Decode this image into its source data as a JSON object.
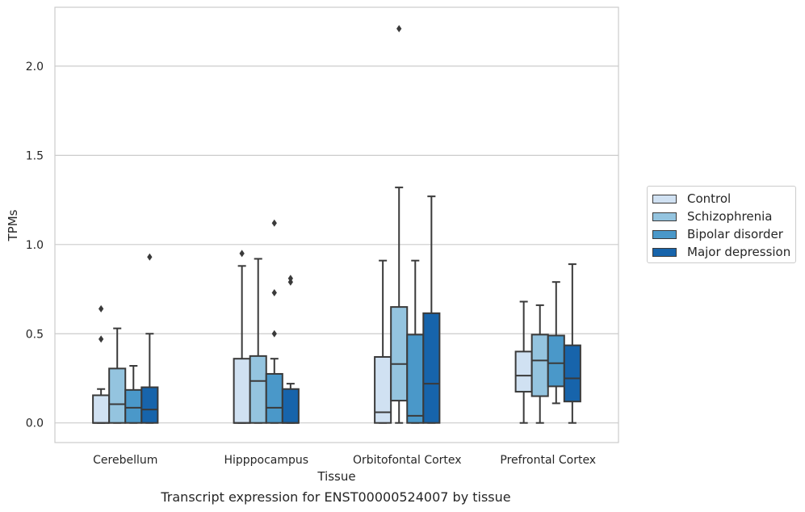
{
  "caption": "Transcript expression for ENST00000524007 by tissue",
  "chart_data": {
    "type": "box",
    "xlabel": "Tissue",
    "ylabel": "TPMs",
    "ylim": [
      -0.11,
      2.33
    ],
    "yticks": [
      0.0,
      0.5,
      1.0,
      1.5,
      2.0
    ],
    "ytick_labels": [
      "0.0",
      "0.5",
      "1.0",
      "1.5",
      "2.0"
    ],
    "grid": true,
    "legend_position": "outside-right",
    "categories": [
      "Cerebellum",
      "Hipppocampus",
      "Orbitofontal Cortex",
      "Prefrontal Cortex"
    ],
    "series": [
      {
        "name": "Control",
        "color": "#d0e1f2",
        "boxes": [
          {
            "whislo": 0.0,
            "q1": 0.0,
            "med": 0.0,
            "q3": 0.155,
            "whishi": 0.19,
            "fliers": [
              0.47,
              0.64
            ]
          },
          {
            "whislo": 0.0,
            "q1": 0.0,
            "med": 0.0,
            "q3": 0.36,
            "whishi": 0.88,
            "fliers": [
              0.95
            ]
          },
          {
            "whislo": 0.0,
            "q1": 0.0,
            "med": 0.06,
            "q3": 0.37,
            "whishi": 0.91,
            "fliers": []
          },
          {
            "whislo": 0.0,
            "q1": 0.175,
            "med": 0.265,
            "q3": 0.4,
            "whishi": 0.68,
            "fliers": []
          }
        ]
      },
      {
        "name": "Schizophrenia",
        "color": "#94c4df",
        "boxes": [
          {
            "whislo": 0.0,
            "q1": 0.0,
            "med": 0.105,
            "q3": 0.305,
            "whishi": 0.53,
            "fliers": []
          },
          {
            "whislo": 0.0,
            "q1": 0.0,
            "med": 0.235,
            "q3": 0.375,
            "whishi": 0.92,
            "fliers": []
          },
          {
            "whislo": 0.0,
            "q1": 0.125,
            "med": 0.33,
            "q3": 0.65,
            "whishi": 1.32,
            "fliers": [
              2.21
            ]
          },
          {
            "whislo": 0.0,
            "q1": 0.15,
            "med": 0.35,
            "q3": 0.495,
            "whishi": 0.66,
            "fliers": []
          }
        ]
      },
      {
        "name": "Bipolar disorder",
        "color": "#4a98c9",
        "boxes": [
          {
            "whislo": 0.0,
            "q1": 0.0,
            "med": 0.085,
            "q3": 0.185,
            "whishi": 0.32,
            "fliers": []
          },
          {
            "whislo": 0.0,
            "q1": 0.0,
            "med": 0.085,
            "q3": 0.275,
            "whishi": 0.36,
            "fliers": [
              0.5,
              0.73,
              1.12
            ]
          },
          {
            "whislo": 0.0,
            "q1": 0.0,
            "med": 0.04,
            "q3": 0.495,
            "whishi": 0.91,
            "fliers": []
          },
          {
            "whislo": 0.11,
            "q1": 0.205,
            "med": 0.335,
            "q3": 0.49,
            "whishi": 0.79,
            "fliers": []
          }
        ]
      },
      {
        "name": "Major depression",
        "color": "#1764ab",
        "boxes": [
          {
            "whislo": 0.0,
            "q1": 0.0,
            "med": 0.075,
            "q3": 0.2,
            "whishi": 0.5,
            "fliers": [
              0.93
            ]
          },
          {
            "whislo": 0.0,
            "q1": 0.0,
            "med": 0.0,
            "q3": 0.19,
            "whishi": 0.22,
            "fliers": [
              0.79,
              0.81
            ]
          },
          {
            "whislo": 0.0,
            "q1": 0.0,
            "med": 0.22,
            "q3": 0.615,
            "whishi": 1.27,
            "fliers": []
          },
          {
            "whislo": 0.0,
            "q1": 0.12,
            "med": 0.25,
            "q3": 0.435,
            "whishi": 0.89,
            "fliers": []
          }
        ]
      }
    ]
  }
}
